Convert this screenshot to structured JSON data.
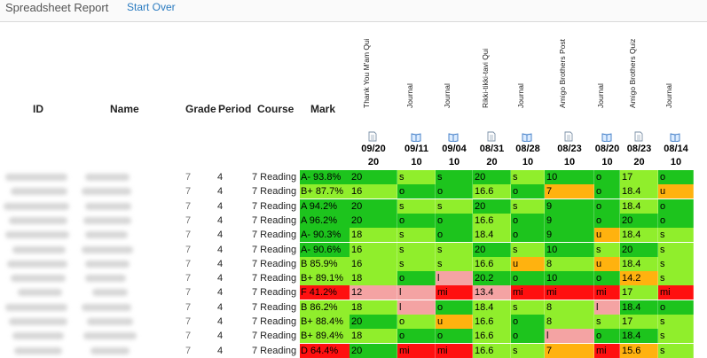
{
  "app": {
    "title": "Spreadsheet Report",
    "start_over": "Start Over"
  },
  "columns": {
    "id": "ID",
    "name": "Name",
    "grade": "Grade",
    "period": "Period",
    "course": "Course",
    "mark": "Mark"
  },
  "colors": {
    "dark_green": "#1dc41d",
    "light_green": "#90ee2c",
    "orange": "#ffb20f",
    "red": "#ff1010",
    "pink": "#f4a3a3",
    "link": "#2a7bc0"
  },
  "assignments": [
    {
      "title": "Thank You M'am Qui",
      "icon": "document-icon",
      "date": "09/20",
      "points": "20"
    },
    {
      "title": "Journal",
      "icon": "book-icon",
      "date": "09/11",
      "points": "10"
    },
    {
      "title": "Journal",
      "icon": "book-icon",
      "date": "09/04",
      "points": "10"
    },
    {
      "title": "Rikki-tikki-tavi Qui",
      "icon": "document-icon",
      "date": "08/31",
      "points": "20"
    },
    {
      "title": "Journal",
      "icon": "book-icon",
      "date": "08/28",
      "points": "10"
    },
    {
      "title": "Amigo Brothers Post",
      "icon": "document-icon",
      "date": "08/23",
      "points": "10"
    },
    {
      "title": "Journal",
      "icon": "book-icon",
      "date": "08/20",
      "points": "10"
    },
    {
      "title": "Amigo Brothers Quiz",
      "icon": "document-icon",
      "date": "08/23",
      "points": "20"
    },
    {
      "title": "Journal",
      "icon": "book-icon",
      "date": "08/14",
      "points": "10"
    }
  ],
  "students": [
    {
      "grade": "7",
      "period": "4",
      "course": "7 Reading",
      "mark": "A- 93.8%",
      "mark_color": "dark_green",
      "scores": [
        "20",
        "s",
        "s",
        "20",
        "s",
        "10",
        "o",
        "17",
        "o"
      ],
      "colors": [
        "dark_green",
        "light_green",
        "dark_green",
        "dark_green",
        "light_green",
        "dark_green",
        "dark_green",
        "light_green",
        "dark_green"
      ]
    },
    {
      "grade": "7",
      "period": "4",
      "course": "7 Reading",
      "mark": "B+ 87.7%",
      "mark_color": "light_green",
      "scores": [
        "16",
        "o",
        "o",
        "16.6",
        "o",
        "7",
        "o",
        "18.4",
        "u"
      ],
      "colors": [
        "light_green",
        "dark_green",
        "dark_green",
        "light_green",
        "dark_green",
        "orange",
        "dark_green",
        "light_green",
        "orange"
      ]
    },
    {
      "grade": "7",
      "period": "4",
      "course": "7 Reading",
      "mark": "A 94.2%",
      "mark_color": "dark_green",
      "scores": [
        "20",
        "s",
        "s",
        "20",
        "s",
        "9",
        "o",
        "18.4",
        "o"
      ],
      "colors": [
        "dark_green",
        "light_green",
        "light_green",
        "dark_green",
        "light_green",
        "dark_green",
        "dark_green",
        "light_green",
        "dark_green"
      ]
    },
    {
      "grade": "7",
      "period": "4",
      "course": "7 Reading",
      "mark": "A 96.2%",
      "mark_color": "dark_green",
      "scores": [
        "20",
        "o",
        "o",
        "16.6",
        "o",
        "9",
        "o",
        "20",
        "o"
      ],
      "colors": [
        "dark_green",
        "dark_green",
        "dark_green",
        "light_green",
        "dark_green",
        "dark_green",
        "dark_green",
        "dark_green",
        "dark_green"
      ]
    },
    {
      "grade": "7",
      "period": "4",
      "course": "7 Reading",
      "mark": "A- 90.3%",
      "mark_color": "dark_green",
      "scores": [
        "18",
        "s",
        "o",
        "18.4",
        "o",
        "9",
        "u",
        "18.4",
        "s"
      ],
      "colors": [
        "light_green",
        "light_green",
        "dark_green",
        "light_green",
        "dark_green",
        "dark_green",
        "orange",
        "light_green",
        "light_green"
      ]
    },
    {
      "grade": "7",
      "period": "4",
      "course": "7 Reading",
      "mark": "A- 90.6%",
      "mark_color": "dark_green",
      "scores": [
        "16",
        "s",
        "s",
        "20",
        "s",
        "10",
        "s",
        "20",
        "s"
      ],
      "colors": [
        "light_green",
        "light_green",
        "light_green",
        "dark_green",
        "light_green",
        "dark_green",
        "light_green",
        "dark_green",
        "light_green"
      ]
    },
    {
      "grade": "7",
      "period": "4",
      "course": "7 Reading",
      "mark": "B 85.9%",
      "mark_color": "light_green",
      "scores": [
        "16",
        "s",
        "s",
        "16.6",
        "u",
        "8",
        "u",
        "18.4",
        "s"
      ],
      "colors": [
        "light_green",
        "light_green",
        "light_green",
        "light_green",
        "orange",
        "light_green",
        "orange",
        "light_green",
        "light_green"
      ]
    },
    {
      "grade": "7",
      "period": "4",
      "course": "7 Reading",
      "mark": "B+ 89.1%",
      "mark_color": "light_green",
      "scores": [
        "18",
        "o",
        "l",
        "20.2",
        "o",
        "10",
        "o",
        "14.2",
        "s"
      ],
      "colors": [
        "light_green",
        "dark_green",
        "pink",
        "dark_green",
        "dark_green",
        "dark_green",
        "dark_green",
        "orange",
        "light_green"
      ]
    },
    {
      "grade": "7",
      "period": "4",
      "course": "7 Reading",
      "mark": "F 41.2%",
      "mark_color": "red",
      "scores": [
        "12",
        "l",
        "mi",
        "13.4",
        "mi",
        "mi",
        "mi",
        "17",
        "mi"
      ],
      "colors": [
        "pink",
        "pink",
        "red",
        "pink",
        "red",
        "red",
        "red",
        "light_green",
        "red"
      ]
    },
    {
      "grade": "7",
      "period": "4",
      "course": "7 Reading",
      "mark": "B 86.2%",
      "mark_color": "light_green",
      "scores": [
        "18",
        "l",
        "o",
        "18.4",
        "s",
        "8",
        "l",
        "18.4",
        "o"
      ],
      "colors": [
        "light_green",
        "pink",
        "dark_green",
        "light_green",
        "light_green",
        "light_green",
        "pink",
        "dark_green",
        "dark_green"
      ]
    },
    {
      "grade": "7",
      "period": "4",
      "course": "7 Reading",
      "mark": "B+ 88.4%",
      "mark_color": "light_green",
      "scores": [
        "20",
        "o",
        "u",
        "16.6",
        "o",
        "8",
        "s",
        "17",
        "s"
      ],
      "colors": [
        "dark_green",
        "light_green",
        "orange",
        "light_green",
        "dark_green",
        "light_green",
        "light_green",
        "light_green",
        "light_green"
      ]
    },
    {
      "grade": "7",
      "period": "4",
      "course": "7 Reading",
      "mark": "B+ 89.4%",
      "mark_color": "light_green",
      "scores": [
        "18",
        "o",
        "o",
        "16.6",
        "o",
        "l",
        "o",
        "18.4",
        "s"
      ],
      "colors": [
        "light_green",
        "dark_green",
        "dark_green",
        "light_green",
        "dark_green",
        "pink",
        "dark_green",
        "dark_green",
        "light_green"
      ]
    },
    {
      "grade": "7",
      "period": "4",
      "course": "7 Reading",
      "mark": "D 64.4%",
      "mark_color": "red",
      "scores": [
        "20",
        "mi",
        "mi",
        "16.6",
        "s",
        "7",
        "mi",
        "15.6",
        "s"
      ],
      "colors": [
        "dark_green",
        "red",
        "red",
        "light_green",
        "light_green",
        "orange",
        "red",
        "orange",
        "light_green"
      ]
    }
  ]
}
